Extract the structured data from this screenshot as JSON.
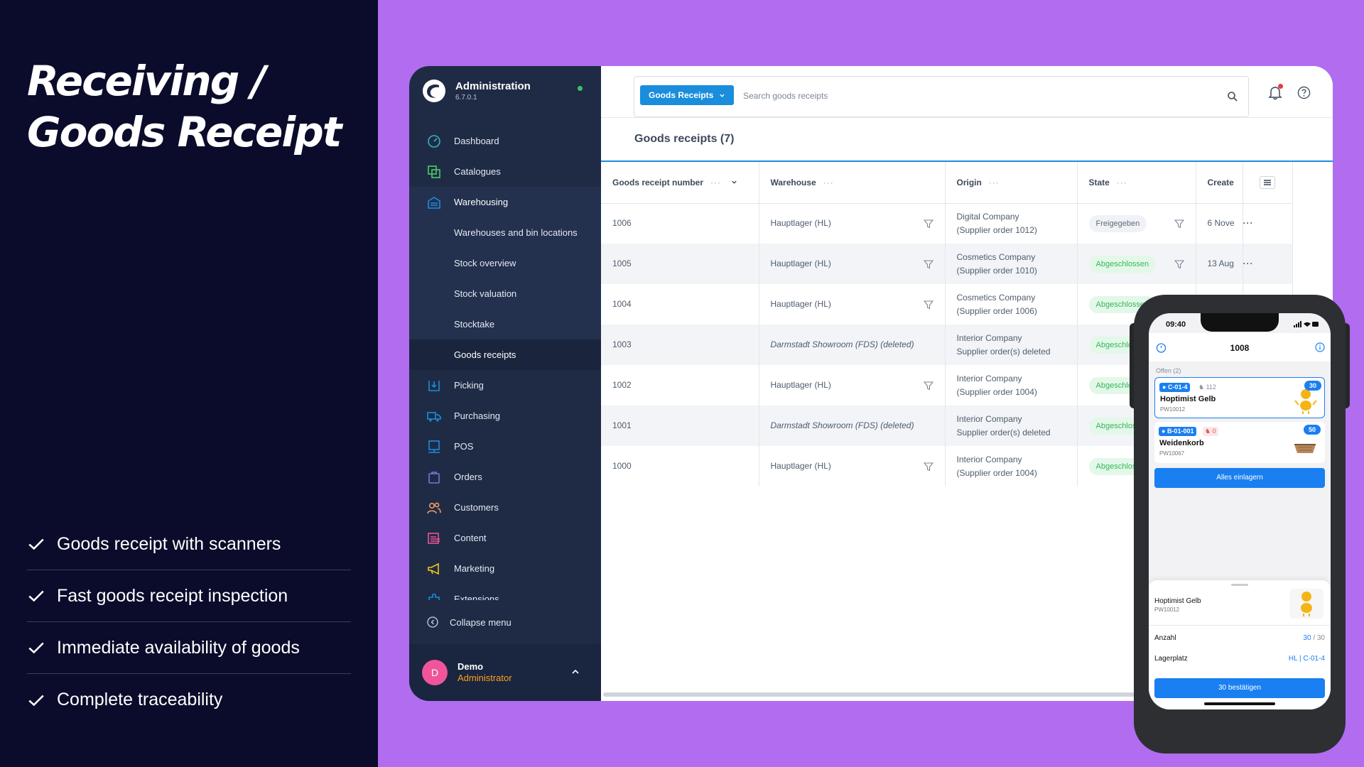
{
  "marketing": {
    "headline_line1": "Receiving /",
    "headline_line2": "Goods Receipt",
    "features": [
      "Goods receipt with scanners",
      "Fast goods receipt inspection",
      "Immediate availability of goods",
      "Complete traceability"
    ]
  },
  "brand": {
    "title": "Administration",
    "version": "6.7.0.1"
  },
  "sidebar": {
    "items": [
      {
        "label": "Dashboard",
        "icon": "dashboard-icon",
        "color": "#38b2c6"
      },
      {
        "label": "Catalogues",
        "icon": "catalogues-icon",
        "color": "#4ccb6a"
      },
      {
        "label": "Warehousing",
        "icon": "warehouse-icon",
        "color": "#1a8ddc"
      },
      {
        "label": "Warehouses and bin locations"
      },
      {
        "label": "Stock overview"
      },
      {
        "label": "Stock valuation"
      },
      {
        "label": "Stocktake"
      },
      {
        "label": "Goods receipts"
      },
      {
        "label": "Picking",
        "icon": "picking-icon",
        "color": "#1a8ddc"
      },
      {
        "label": "Purchasing",
        "icon": "truck-icon",
        "color": "#1a8ddc"
      },
      {
        "label": "POS",
        "icon": "pos-icon",
        "color": "#1a8ddc"
      },
      {
        "label": "Orders",
        "icon": "orders-icon",
        "color": "#7b74d6"
      },
      {
        "label": "Customers",
        "icon": "customers-icon",
        "color": "#f29a60"
      },
      {
        "label": "Content",
        "icon": "content-icon",
        "color": "#e8559a"
      },
      {
        "label": "Marketing",
        "icon": "megaphone-icon",
        "color": "#f5c518"
      },
      {
        "label": "Extensions",
        "icon": "extensions-icon",
        "color": "#1a8ddc"
      }
    ],
    "collapse_label": "Collapse menu"
  },
  "user": {
    "initial": "D",
    "name": "Demo",
    "role": "Administrator"
  },
  "search": {
    "entity_label": "Goods Receipts",
    "placeholder": "Search goods receipts"
  },
  "page": {
    "title": "Goods receipts (7)"
  },
  "table": {
    "columns": [
      "Goods receipt number",
      "Warehouse",
      "Origin",
      "State",
      "Create"
    ],
    "rows": [
      {
        "number": "1006",
        "warehouse": "Hauptlager (HL)",
        "deleted": false,
        "origin1": "Digital Company",
        "origin2": "(Supplier order 1012)",
        "state": "Freigegeben",
        "created": "6 Nove"
      },
      {
        "number": "1005",
        "warehouse": "Hauptlager (HL)",
        "deleted": false,
        "origin1": "Cosmetics Company",
        "origin2": "(Supplier order 1010)",
        "state": "Abgeschlossen",
        "created": "13 Aug"
      },
      {
        "number": "1004",
        "warehouse": "Hauptlager (HL)",
        "deleted": false,
        "origin1": "Cosmetics Company",
        "origin2": "(Supplier order 1006)",
        "state": "Abgeschlossen",
        "created": ""
      },
      {
        "number": "1003",
        "warehouse": "Darmstadt Showroom (FDS) (deleted)",
        "deleted": true,
        "origin1": "Interior Company",
        "origin2": "Supplier order(s) deleted",
        "state": "Abgeschlossen",
        "created": ""
      },
      {
        "number": "1002",
        "warehouse": "Hauptlager (HL)",
        "deleted": false,
        "origin1": "Interior Company",
        "origin2": "(Supplier order 1004)",
        "state": "Abgeschlossen",
        "created": ""
      },
      {
        "number": "1001",
        "warehouse": "Darmstadt Showroom (FDS) (deleted)",
        "deleted": true,
        "origin1": "Interior Company",
        "origin2": "Supplier order(s) deleted",
        "state": "Abgeschlossen",
        "created": ""
      },
      {
        "number": "1000",
        "warehouse": "Hauptlager (HL)",
        "deleted": false,
        "origin1": "Interior Company",
        "origin2": "(Supplier order 1004)",
        "state": "Abgeschlossen",
        "created": ""
      }
    ]
  },
  "phone": {
    "time": "09:40",
    "receipt_number": "1008",
    "section": "Offen (2)",
    "items": [
      {
        "location": "C-01-4",
        "stock": "112",
        "name": "Hoptimist Gelb",
        "sku": "PW10012",
        "qty": "30"
      },
      {
        "location": "B-01-001",
        "stock": "0",
        "name": "Weidenkorb",
        "sku": "PW10067",
        "qty": "50"
      }
    ],
    "store_all": "Alles einlagern",
    "sheet": {
      "name": "Hoptimist Gelb",
      "sku": "PW10012",
      "qty_label": "Anzahl",
      "qty_value": "30",
      "qty_total": "/ 30",
      "slot_label": "Lagerplatz",
      "slot_value": "HL | C-01-4",
      "confirm": "30 bestätigen"
    }
  }
}
